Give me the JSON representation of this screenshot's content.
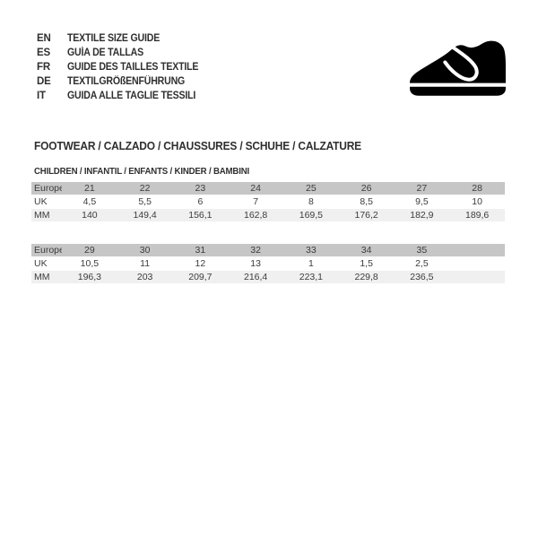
{
  "languages": [
    {
      "code": "EN",
      "label": "TEXTILE SIZE GUIDE"
    },
    {
      "code": "ES",
      "label": "GUÍA DE TALLAS"
    },
    {
      "code": "FR",
      "label": "GUIDE DES TAILLES TEXTILE"
    },
    {
      "code": "DE",
      "label": "TEXTILGRÖßENFÜHRUNG"
    },
    {
      "code": "IT",
      "label": "GUIDA ALLE TAGLIE TESSILI"
    }
  ],
  "icon": {
    "name": "children-shoe-icon",
    "color": "#000000"
  },
  "section": {
    "title": "FOOTWEAR / CALZADO / CHAUSSURES / SCHUHE / CALZATURE",
    "subtitle": "CHILDREN / INFANTIL / ENFANTS / KINDER / BAMBINI"
  },
  "colors": {
    "header_row_bg": "#c6c6c6",
    "alt_row_bg": "#f0f0f0",
    "text": "#3c3c3c"
  },
  "tables": [
    {
      "rows": [
        {
          "label": "Europe",
          "values": [
            "21",
            "22",
            "23",
            "24",
            "25",
            "26",
            "27",
            "28"
          ]
        },
        {
          "label": "UK",
          "values": [
            "4,5",
            "5,5",
            "6",
            "7",
            "8",
            "8,5",
            "9,5",
            "10"
          ]
        },
        {
          "label": "MM",
          "values": [
            "140",
            "149,4",
            "156,1",
            "162,8",
            "169,5",
            "176,2",
            "182,9",
            "189,6"
          ]
        }
      ]
    },
    {
      "rows": [
        {
          "label": "Europe",
          "values": [
            "29",
            "30",
            "31",
            "32",
            "33",
            "34",
            "35",
            ""
          ]
        },
        {
          "label": "UK",
          "values": [
            "10,5",
            "11",
            "12",
            "13",
            "1",
            "1,5",
            "2,5",
            ""
          ]
        },
        {
          "label": "MM",
          "values": [
            "196,3",
            "203",
            "209,7",
            "216,4",
            "223,1",
            "229,8",
            "236,5",
            ""
          ]
        }
      ]
    }
  ]
}
